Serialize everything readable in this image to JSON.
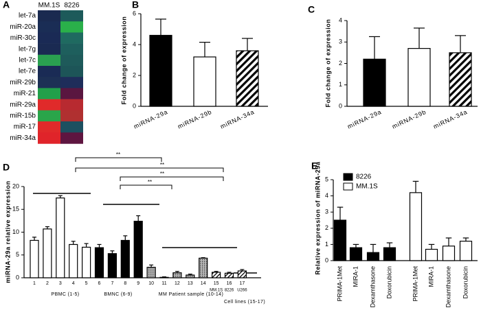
{
  "chart_data": [
    {
      "type": "heatmap",
      "label": "A",
      "columns": [
        "MM.1S",
        "8226"
      ],
      "rows": [
        "let-7a",
        "miR-20a",
        "miR-30c",
        "let-7g",
        "let-7c",
        "let-7e",
        "miR-29b",
        "miR-21",
        "miR-29a",
        "miR-15b",
        "miR-17",
        "miR-34a"
      ],
      "colors": [
        [
          "#1a2a50",
          "#1d5a5a"
        ],
        [
          "#1a2d55",
          "#2ab04a"
        ],
        [
          "#1a2a55",
          "#1f6a60"
        ],
        [
          "#1a2a52",
          "#1e5f5d"
        ],
        [
          "#2aa050",
          "#1e5a5a"
        ],
        [
          "#1a2b55",
          "#1d5558"
        ],
        [
          "#1d3055",
          "#1e2d5a"
        ],
        [
          "#22a04a",
          "#5a1640"
        ],
        [
          "#e02a2a",
          "#b82a30"
        ],
        [
          "#2aa54a",
          "#b03030"
        ],
        [
          "#e02a2a",
          "#1d5060"
        ],
        [
          "#e0242a",
          "#5e1540"
        ]
      ]
    },
    {
      "type": "bar",
      "label": "B",
      "y_label": "Fold change of expression",
      "categories": [
        "miRNA-29a",
        "miRNA-29b",
        "miRNA-34a"
      ],
      "values": [
        4.6,
        3.2,
        3.6
      ],
      "errors": [
        1.05,
        0.95,
        0.8
      ],
      "fills": [
        "black",
        "white",
        "hatch"
      ],
      "ylim": [
        0,
        6
      ],
      "yticks": [
        0,
        2,
        4,
        6
      ]
    },
    {
      "type": "bar",
      "label": "C",
      "y_label": "Fold change of expression",
      "categories": [
        "miRNA-29a",
        "miRNA-29b",
        "miRNA-34a"
      ],
      "values": [
        2.2,
        2.7,
        2.5
      ],
      "errors": [
        1.05,
        0.95,
        0.8
      ],
      "fills": [
        "black",
        "white",
        "hatch"
      ],
      "ylim": [
        0,
        4
      ],
      "yticks": [
        0,
        1,
        2,
        3,
        4
      ]
    },
    {
      "type": "bar",
      "label": "D",
      "y_label": "miRNA-29a relative expression",
      "categories": [
        "1",
        "2",
        "3",
        "4",
        "5",
        "6",
        "7",
        "8",
        "9",
        "10",
        "11",
        "12",
        "13",
        "14",
        "15",
        "16",
        "17"
      ],
      "values": [
        8.2,
        10.7,
        17.5,
        7.3,
        6.7,
        6.6,
        5.3,
        8.2,
        12.4,
        2.3,
        0.1,
        1.1,
        0.6,
        4.3,
        1.2,
        1.0,
        1.5
      ],
      "errors": [
        0.7,
        0.5,
        0.5,
        0.7,
        0.8,
        0.7,
        0.6,
        1.0,
        1.2,
        0.5,
        0.1,
        0.3,
        0.2,
        0.1,
        0.2,
        0.2,
        0.3
      ],
      "fills": [
        "white",
        "white",
        "white",
        "white",
        "white",
        "black",
        "black",
        "black",
        "black",
        "dots",
        "dots",
        "dots",
        "dots",
        "dots",
        "stripes",
        "stripes",
        "stripes"
      ],
      "cell_line_labels": [
        "MM.1S",
        "8226",
        "U266"
      ],
      "group_labels": [
        "PBMC (1-5)",
        "BMNC (6-9)",
        "MM Patient sample (10-14)",
        "Cell lines (15-17)"
      ],
      "significance_labels": [
        "**",
        "**",
        "**",
        "**"
      ],
      "ylim": [
        0,
        20
      ],
      "yticks": [
        0,
        5,
        10,
        15,
        20
      ]
    },
    {
      "type": "bar",
      "label": "E",
      "y_label": "Relative expression of miRNA-29a",
      "categories": [
        "PRIMA-1Met",
        "MIRA-1",
        "Dexamthasone",
        "Doxorubicin",
        "PRIMA-1Met",
        "MIRA-1",
        "Dexamthasone",
        "Doxorubicin"
      ],
      "series": [
        {
          "name": "8226",
          "color": "black",
          "values": [
            2.5,
            0.8,
            0.5,
            0.8,
            null,
            null,
            null,
            null
          ],
          "errors": [
            0.8,
            0.2,
            0.5,
            0.3,
            null,
            null,
            null,
            null
          ]
        },
        {
          "name": "MM.1S",
          "color": "white",
          "values": [
            null,
            null,
            null,
            null,
            4.2,
            0.7,
            0.9,
            1.2
          ],
          "errors": [
            null,
            null,
            null,
            null,
            0.7,
            0.3,
            0.5,
            0.2
          ]
        }
      ],
      "ylim": [
        0,
        5
      ],
      "yticks": [
        0,
        1,
        2,
        3,
        4,
        5
      ]
    }
  ]
}
